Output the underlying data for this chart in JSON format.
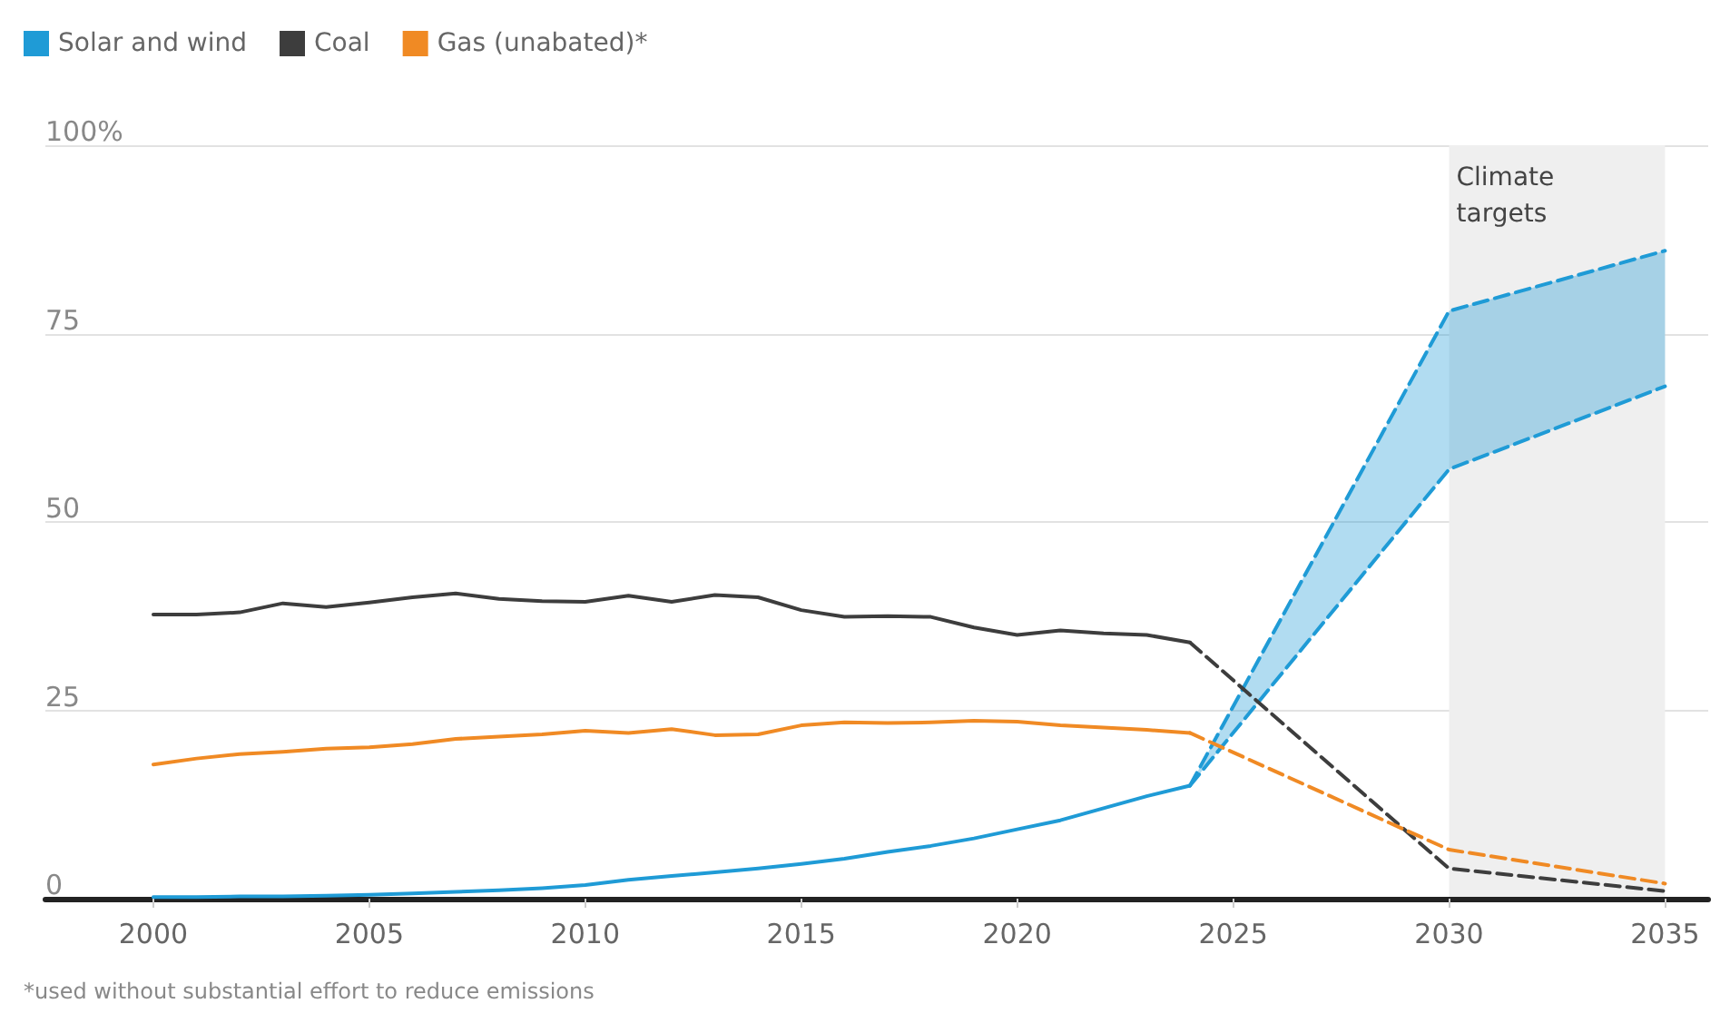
{
  "chart_data": {
    "type": "line",
    "annotations": [
      "*used without substantial effort to reduce emissions"
    ],
    "x": [
      2000,
      2001,
      2002,
      2003,
      2004,
      2005,
      2006,
      2007,
      2008,
      2009,
      2010,
      2011,
      2012,
      2013,
      2014,
      2015,
      2016,
      2017,
      2018,
      2019,
      2020,
      2021,
      2022,
      2023,
      2024
    ],
    "series": [
      {
        "name": "Solar and wind",
        "color": "#1f9bd6",
        "values": [
          0.2,
          0.2,
          0.3,
          0.3,
          0.4,
          0.5,
          0.7,
          0.9,
          1.1,
          1.4,
          1.8,
          2.5,
          3,
          3.5,
          4,
          4.6,
          5.3,
          6.2,
          7,
          8,
          9.2,
          10.4,
          12,
          13.6,
          15
        ]
      },
      {
        "name": "Coal",
        "color": "#3d3d3d",
        "values": [
          37.7,
          37.7,
          38,
          39.2,
          38.7,
          39.3,
          40,
          40.5,
          39.8,
          39.5,
          39.4,
          40.2,
          39.4,
          40.3,
          40,
          38.3,
          37.4,
          37.5,
          37.4,
          36,
          35,
          35.6,
          35.2,
          35,
          34
        ]
      },
      {
        "name": "Gas (unabated)*",
        "color": "#f08a24",
        "values": [
          17.8,
          18.6,
          19.2,
          19.5,
          19.9,
          20.1,
          20.5,
          21.2,
          21.5,
          21.8,
          22.3,
          22,
          22.5,
          21.7,
          21.8,
          23,
          23.4,
          23.3,
          23.4,
          23.6,
          23.5,
          23,
          22.7,
          22.4,
          22
        ]
      },
      {
        "color": "#1f9bd6",
        "line_style": "dashed",
        "x": [
          2024,
          2030,
          2035
        ],
        "values": [
          15,
          57,
          68
        ],
        "lower": [
          15,
          57,
          68
        ],
        "upper": [
          15,
          78,
          86
        ]
      },
      {
        "color": "#1f9bd6",
        "line_style": "dashed",
        "x": [
          2024,
          2030,
          2035
        ],
        "values": [
          15,
          78,
          86
        ]
      },
      {
        "color": "#3d3d3d",
        "line_style": "dashed",
        "x": [
          2024,
          2030,
          2035
        ],
        "values": [
          34,
          4,
          1
        ]
      },
      {
        "color": "#f08a24",
        "line_style": "dashed",
        "x": [
          2024,
          2030,
          2035
        ],
        "values": [
          22,
          6.5,
          2
        ]
      }
    ],
    "xlim": [
      1997.5,
      2036
    ],
    "xticks": [
      2000,
      2005,
      2010,
      2015,
      2020,
      2025,
      2030,
      2035
    ],
    "ylim": [
      0,
      100
    ],
    "yticks": [
      0,
      25,
      50,
      75,
      {
        "value": 100,
        "label": "100%"
      }
    ],
    "bands": [
      {
        "axis": "x",
        "from": 2030,
        "to": 2035,
        "label": "Climate targets",
        "color": "#efefef"
      }
    ],
    "grid": "y",
    "legend": "top left",
    "marker": "none"
  }
}
